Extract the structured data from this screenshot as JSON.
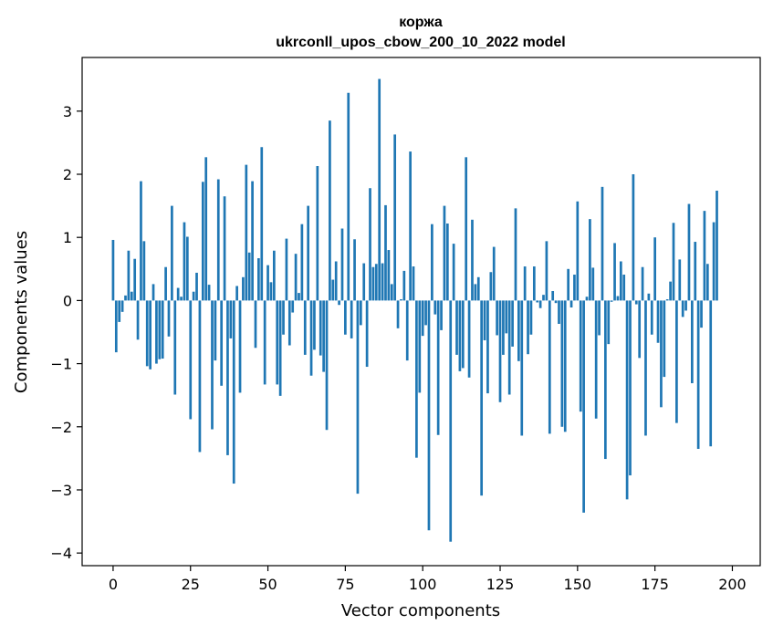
{
  "chart_data": {
    "type": "bar",
    "title": "коржа",
    "subtitle": "ukrconll_upos_cbow_200_10_2022 model",
    "xlabel": "Vector components",
    "ylabel": "Components values",
    "xlim": [
      -10,
      209
    ],
    "ylim": [
      -4.2,
      3.85
    ],
    "xticks": [
      0,
      25,
      50,
      75,
      100,
      125,
      150,
      175,
      200
    ],
    "yticks": [
      -4,
      -3,
      -2,
      -1,
      0,
      1,
      2,
      3
    ],
    "bar_color": "#1f77b4",
    "grid": false,
    "legend": "none",
    "values": [
      0.96,
      -0.82,
      -0.34,
      -0.18,
      0.08,
      0.79,
      0.14,
      0.66,
      -0.62,
      1.89,
      0.94,
      -1.04,
      -1.09,
      0.26,
      -1.0,
      -0.93,
      -0.92,
      0.53,
      -0.57,
      1.5,
      -1.49,
      0.2,
      0.06,
      1.24,
      1.01,
      -1.88,
      0.14,
      0.44,
      -2.4,
      1.88,
      2.27,
      0.25,
      -2.04,
      -0.95,
      1.92,
      -1.35,
      1.65,
      -2.45,
      -0.6,
      -2.9,
      0.23,
      -1.46,
      0.37,
      2.15,
      0.76,
      1.89,
      -0.75,
      0.67,
      2.43,
      -1.33,
      0.56,
      0.29,
      0.79,
      -1.33,
      -1.51,
      -0.54,
      0.98,
      -0.71,
      -0.19,
      0.74,
      0.12,
      1.21,
      -0.86,
      1.5,
      -1.19,
      -0.78,
      2.13,
      -0.87,
      -1.13,
      -2.05,
      2.85,
      0.33,
      0.62,
      -0.07,
      1.14,
      -0.54,
      3.29,
      -0.6,
      0.97,
      -3.06,
      -0.39,
      0.59,
      -1.05,
      1.78,
      0.53,
      0.58,
      3.51,
      0.59,
      1.51,
      0.8,
      0.26,
      2.63,
      -0.44,
      0.02,
      0.47,
      -0.95,
      2.36,
      0.54,
      -2.49,
      -1.46,
      -0.56,
      -0.39,
      -3.64,
      1.21,
      -0.22,
      -2.13,
      -0.47,
      1.5,
      1.22,
      -3.82,
      0.9,
      -0.86,
      -1.12,
      -1.07,
      2.27,
      -1.22,
      1.28,
      0.26,
      0.37,
      -3.09,
      -0.63,
      -1.47,
      0.45,
      0.85,
      -0.55,
      -1.61,
      -0.86,
      -0.52,
      -1.49,
      -0.73,
      1.46,
      -0.96,
      -2.14,
      0.54,
      -0.85,
      -0.54,
      0.54,
      -0.03,
      -0.12,
      0.09,
      0.94,
      -2.11,
      0.15,
      -0.04,
      -0.37,
      -2.0,
      -2.08,
      0.5,
      -0.11,
      0.41,
      1.57,
      -1.76,
      -3.36,
      0.06,
      1.29,
      0.52,
      -1.87,
      -0.55,
      1.8,
      -2.51,
      -0.69,
      -0.02,
      0.91,
      0.07,
      0.62,
      0.41,
      -3.15,
      -2.77,
      2.0,
      -0.06,
      -0.91,
      0.53,
      -2.14,
      0.11,
      -0.54,
      1.0,
      -0.67,
      -1.69,
      -1.21,
      0.02,
      0.3,
      1.23,
      -1.94,
      0.65,
      -0.26,
      -0.16,
      1.53,
      -1.31,
      0.93,
      -2.35,
      -0.43,
      1.42,
      0.58,
      -2.31,
      1.24,
      1.74
    ]
  }
}
